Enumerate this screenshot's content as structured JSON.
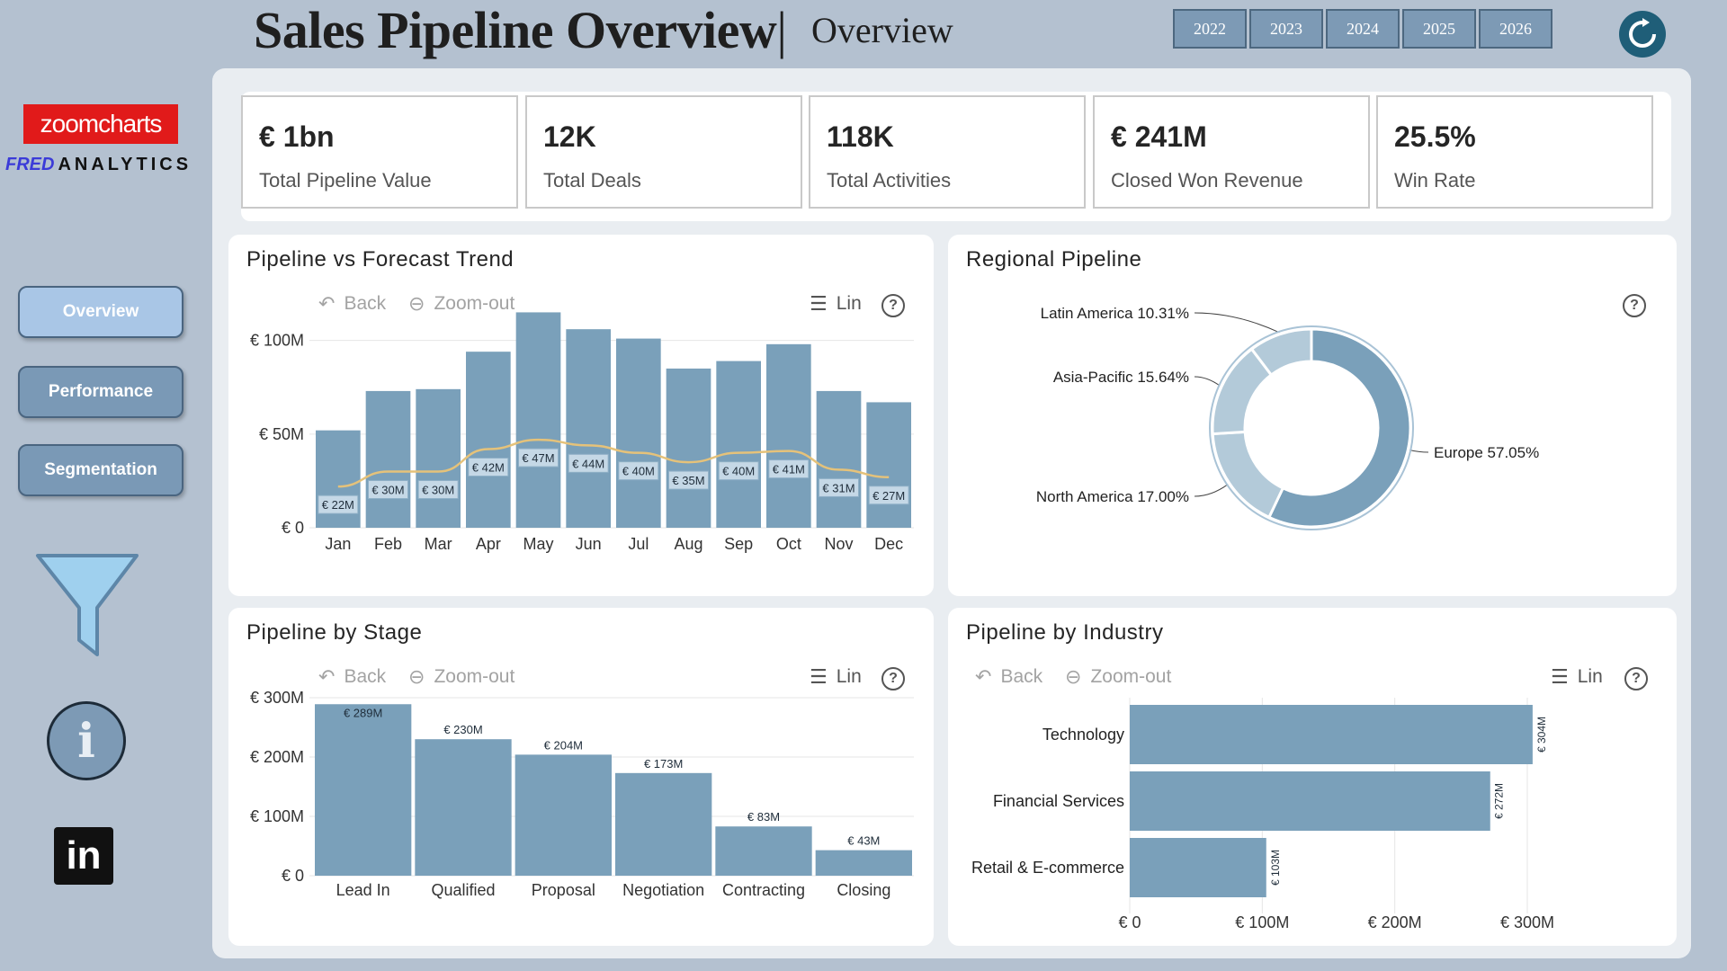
{
  "header": {
    "title": "Sales Pipeline Overview",
    "separator": "|",
    "subtitle": "Overview",
    "years": [
      "2022",
      "2023",
      "2024",
      "2025",
      "2026"
    ]
  },
  "sidebar": {
    "logo_main": "zoomcharts",
    "logo_fred": "FRED",
    "logo_analytics": "ANALYTICS",
    "nav": [
      "Overview",
      "Performance",
      "Segmentation"
    ],
    "info_glyph": "i",
    "linkedin_glyph": "in"
  },
  "kpis": [
    {
      "value": "€ 1bn",
      "label": "Total Pipeline Value"
    },
    {
      "value": "12K",
      "label": "Total Deals"
    },
    {
      "value": "118K",
      "label": "Total Activities"
    },
    {
      "value": "€ 241M",
      "label": "Closed Won Revenue"
    },
    {
      "value": "25.5%",
      "label": "Win Rate"
    }
  ],
  "toolbar": {
    "back": "Back",
    "zoom_out": "Zoom-out",
    "lin": "Lin",
    "help": "?"
  },
  "colors": {
    "bar": "#7aa0ba",
    "line": "#e5c27a",
    "accent": "#4a6580",
    "donut_europe": "#7aa0ba",
    "donut_other": "#b3cad9"
  },
  "chart_data": [
    {
      "type": "bar",
      "title": "Pipeline vs Forecast Trend",
      "categories": [
        "Jan",
        "Feb",
        "Mar",
        "Apr",
        "May",
        "Jun",
        "Jul",
        "Aug",
        "Sep",
        "Oct",
        "Nov",
        "Dec"
      ],
      "series": [
        {
          "values": [
            52,
            73,
            74,
            94,
            115,
            106,
            101,
            85,
            89,
            98,
            73,
            67
          ]
        },
        {
          "values": [
            22,
            30,
            30,
            42,
            47,
            44,
            40,
            35,
            40,
            41,
            31,
            27
          ],
          "labels": [
            "€ 22M",
            "€ 30M",
            "€ 30M",
            "€ 42M",
            "€ 47M",
            "€ 44M",
            "€ 40M",
            "€ 35M",
            "€ 40M",
            "€ 41M",
            "€ 31M",
            "€ 27M"
          ]
        }
      ],
      "yticks": [
        "€ 0",
        "€ 50M",
        "€ 100M"
      ],
      "ylim": [
        0,
        120
      ]
    },
    {
      "type": "pie",
      "title": "Regional Pipeline",
      "slices": [
        {
          "label": "Europe 57.05%",
          "value": 57.05
        },
        {
          "label": "North America 17.00%",
          "value": 17.0
        },
        {
          "label": "Asia-Pacific 15.64%",
          "value": 15.64
        },
        {
          "label": "Latin America 10.31%",
          "value": 10.31
        }
      ]
    },
    {
      "type": "bar",
      "title": "Pipeline by Stage",
      "categories": [
        "Lead In",
        "Qualified",
        "Proposal",
        "Negotiation",
        "Contracting",
        "Closing"
      ],
      "values": [
        289,
        230,
        204,
        173,
        83,
        43
      ],
      "labels": [
        "€ 289M",
        "€ 230M",
        "€ 204M",
        "€ 173M",
        "€ 83M",
        "€ 43M"
      ],
      "yticks": [
        "€ 0",
        "€ 100M",
        "€ 200M",
        "€ 300M"
      ],
      "ylim": [
        0,
        300
      ]
    },
    {
      "type": "bar",
      "title": "Pipeline by Industry",
      "categories": [
        "Technology",
        "Financial Services",
        "Retail & E-commerce"
      ],
      "values": [
        304,
        272,
        103
      ],
      "labels": [
        "€ 304M",
        "€ 272M",
        "€ 103M"
      ],
      "xticks": [
        "€ 0",
        "€ 100M",
        "€ 200M",
        "€ 300M"
      ],
      "xlim": [
        0,
        300
      ]
    }
  ]
}
